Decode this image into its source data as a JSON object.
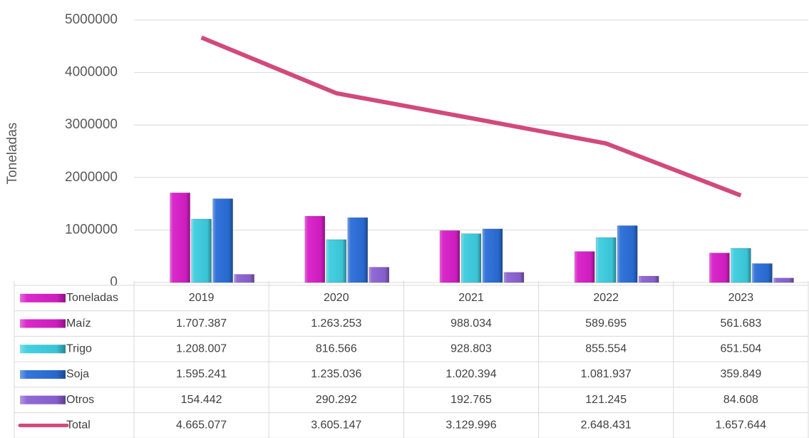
{
  "chart_data": {
    "type": "bar",
    "y_label": "Toneladas",
    "table_header": "Toneladas",
    "categories": [
      "2019",
      "2020",
      "2021",
      "2022",
      "2023"
    ],
    "ylim": [
      0,
      5000000
    ],
    "yticks": [
      0,
      1000000,
      2000000,
      3000000,
      4000000,
      5000000
    ],
    "grid": true,
    "series": [
      {
        "name": "Maíz",
        "color": "#d81ec8",
        "values": [
          1707387,
          1263253,
          988034,
          589695,
          561683
        ],
        "value_labels": [
          "1.707.387",
          "1.263.253",
          "988.034",
          "589.695",
          "561.683"
        ]
      },
      {
        "name": "Trigo",
        "color": "#3ccde0",
        "values": [
          1208007,
          816566,
          928803,
          855554,
          651504
        ],
        "value_labels": [
          "1.208.007",
          "816.566",
          "928.803",
          "855.554",
          "651.504"
        ]
      },
      {
        "name": "Soja",
        "color": "#2a6ed8",
        "values": [
          1595241,
          1235036,
          1020394,
          1081937,
          359849
        ],
        "value_labels": [
          "1.595.241",
          "1.235.036",
          "1.020.394",
          "1.081.937",
          "359.849"
        ]
      },
      {
        "name": "Otros",
        "color": "#8b62d4",
        "values": [
          154442,
          290292,
          192765,
          121245,
          84608
        ],
        "value_labels": [
          "154.442",
          "290.292",
          "192.765",
          "121.245",
          "84.608"
        ]
      },
      {
        "name": "Total",
        "type": "line",
        "color": "#d14a7c",
        "values": [
          4665077,
          3605147,
          3129996,
          2648431,
          1657644
        ],
        "value_labels": [
          "4.665.077",
          "3.605.147",
          "3.129.996",
          "2.648.431",
          "1.657.644"
        ]
      }
    ]
  }
}
